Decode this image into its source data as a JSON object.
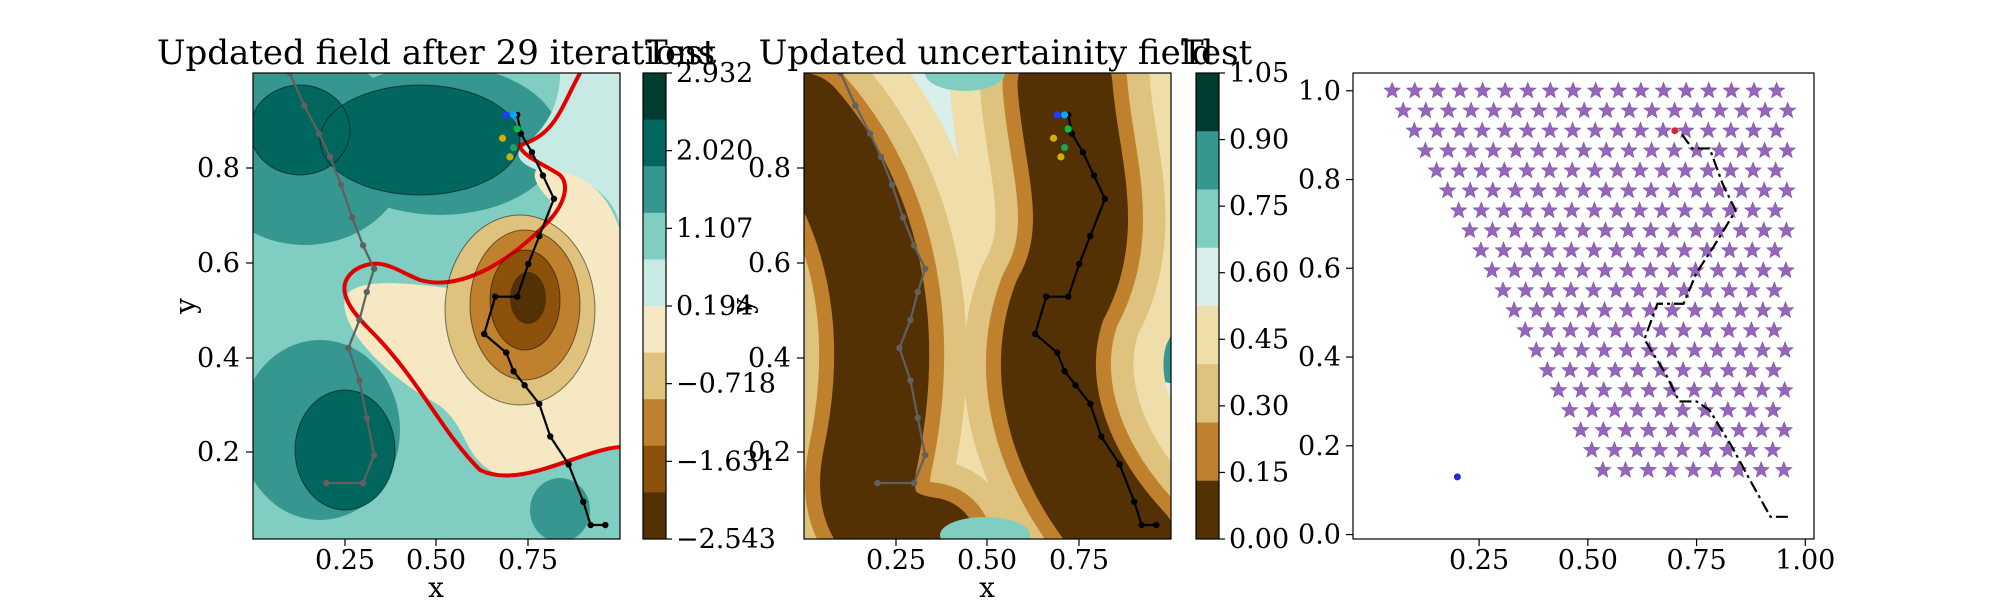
{
  "chart_data": [
    {
      "type": "contour",
      "title": "Updated field after 29 iterations",
      "xlabel": "x",
      "ylabel": "y",
      "xlim": [
        0.0,
        1.0
      ],
      "ylim": [
        0.0,
        1.0
      ],
      "xticks": [
        "0.25",
        "0.50",
        "0.75"
      ],
      "yticks": [
        "0.2",
        "0.4",
        "0.6",
        "0.8"
      ],
      "colorbar": {
        "label": "Test",
        "ticks": [
          "2.932",
          "2.020",
          "1.107",
          "0.194",
          "−0.718",
          "−1.631",
          "−2.543"
        ],
        "colors": [
          "#003c30",
          "#01665e",
          "#35978f",
          "#80cdc1",
          "#c7eae5",
          "#f6e8c3",
          "#dfc27d",
          "#bf812d",
          "#8c510a",
          "#543005"
        ]
      },
      "threshold_contour": {
        "color": "#e00000",
        "value": 0
      },
      "paths": [
        {
          "color": "#000000",
          "points": [
            [
              0.96,
              0.03
            ],
            [
              0.92,
              0.03
            ],
            [
              0.9,
              0.08
            ],
            [
              0.86,
              0.16
            ],
            [
              0.81,
              0.22
            ],
            [
              0.78,
              0.29
            ],
            [
              0.74,
              0.33
            ],
            [
              0.71,
              0.36
            ],
            [
              0.69,
              0.4
            ],
            [
              0.63,
              0.44
            ],
            [
              0.66,
              0.52
            ],
            [
              0.72,
              0.52
            ],
            [
              0.75,
              0.59
            ],
            [
              0.78,
              0.65
            ],
            [
              0.82,
              0.73
            ],
            [
              0.79,
              0.78
            ],
            [
              0.76,
              0.83
            ],
            [
              0.73,
              0.87
            ],
            [
              0.72,
              0.91
            ]
          ]
        },
        {
          "color": "#606060",
          "points": [
            [
              0.2,
              0.12
            ],
            [
              0.3,
              0.12
            ],
            [
              0.33,
              0.18
            ],
            [
              0.31,
              0.26
            ],
            [
              0.29,
              0.34
            ],
            [
              0.26,
              0.41
            ],
            [
              0.29,
              0.47
            ],
            [
              0.31,
              0.53
            ],
            [
              0.33,
              0.58
            ],
            [
              0.3,
              0.63
            ],
            [
              0.27,
              0.69
            ],
            [
              0.24,
              0.76
            ],
            [
              0.21,
              0.82
            ],
            [
              0.18,
              0.87
            ],
            [
              0.14,
              0.93
            ],
            [
              0.1,
              1.0
            ]
          ]
        }
      ],
      "samples": [
        {
          "x": 0.69,
          "y": 0.91,
          "color": "#1f3cff"
        },
        {
          "x": 0.71,
          "y": 0.91,
          "color": "#00aaff"
        },
        {
          "x": 0.72,
          "y": 0.88,
          "color": "#00c040"
        },
        {
          "x": 0.68,
          "y": 0.86,
          "color": "#d4b000"
        },
        {
          "x": 0.71,
          "y": 0.84,
          "color": "#20a060"
        },
        {
          "x": 0.7,
          "y": 0.82,
          "color": "#c8b400"
        }
      ]
    },
    {
      "type": "contour",
      "title": "Updated uncertainity field",
      "xlabel": "x",
      "ylabel": "y",
      "xlim": [
        0.0,
        1.0
      ],
      "ylim": [
        0.0,
        1.0
      ],
      "xticks": [
        "0.25",
        "0.50",
        "0.75"
      ],
      "yticks": [
        "0.2",
        "0.4",
        "0.6",
        "0.8"
      ],
      "colorbar": {
        "label": "Test",
        "ticks": [
          "1.05",
          "0.90",
          "0.75",
          "0.60",
          "0.45",
          "0.30",
          "0.15",
          "0.00"
        ],
        "colors": [
          "#003c30",
          "#35978f",
          "#80cdc1",
          "#d8efeb",
          "#f0deaa",
          "#dfc27d",
          "#bf812d",
          "#543005"
        ]
      }
    },
    {
      "type": "scatter",
      "xlim": [
        0.0,
        1.0
      ],
      "ylim": [
        0.0,
        1.0
      ],
      "xticks": [
        "0.25",
        "0.50",
        "0.75",
        "1.00"
      ],
      "yticks": [
        "0.0",
        "0.2",
        "0.4",
        "0.6",
        "0.8",
        "1.0"
      ],
      "marker": "star",
      "marker_color": "#9467bd",
      "grid_rows": 20,
      "row_step": 0.045,
      "col_step": 0.052,
      "top_row_y": 1.0,
      "first_row_start_x": 0.05,
      "first_row_end_x": 0.94,
      "dashed_path": {
        "color": "#000000",
        "points": [
          [
            0.96,
            0.04
          ],
          [
            0.92,
            0.04
          ],
          [
            0.88,
            0.11
          ],
          [
            0.83,
            0.2
          ],
          [
            0.78,
            0.28
          ],
          [
            0.75,
            0.3
          ],
          [
            0.71,
            0.3
          ],
          [
            0.68,
            0.36
          ],
          [
            0.63,
            0.44
          ],
          [
            0.66,
            0.52
          ],
          [
            0.72,
            0.52
          ],
          [
            0.75,
            0.59
          ],
          [
            0.79,
            0.65
          ],
          [
            0.84,
            0.73
          ],
          [
            0.81,
            0.79
          ],
          [
            0.78,
            0.87
          ],
          [
            0.74,
            0.87
          ],
          [
            0.71,
            0.91
          ]
        ]
      },
      "highlight_points": [
        {
          "x": 0.7,
          "y": 0.91,
          "color": "#d62728"
        },
        {
          "x": 0.2,
          "y": 0.13,
          "color": "#1f2bd6"
        }
      ]
    }
  ]
}
